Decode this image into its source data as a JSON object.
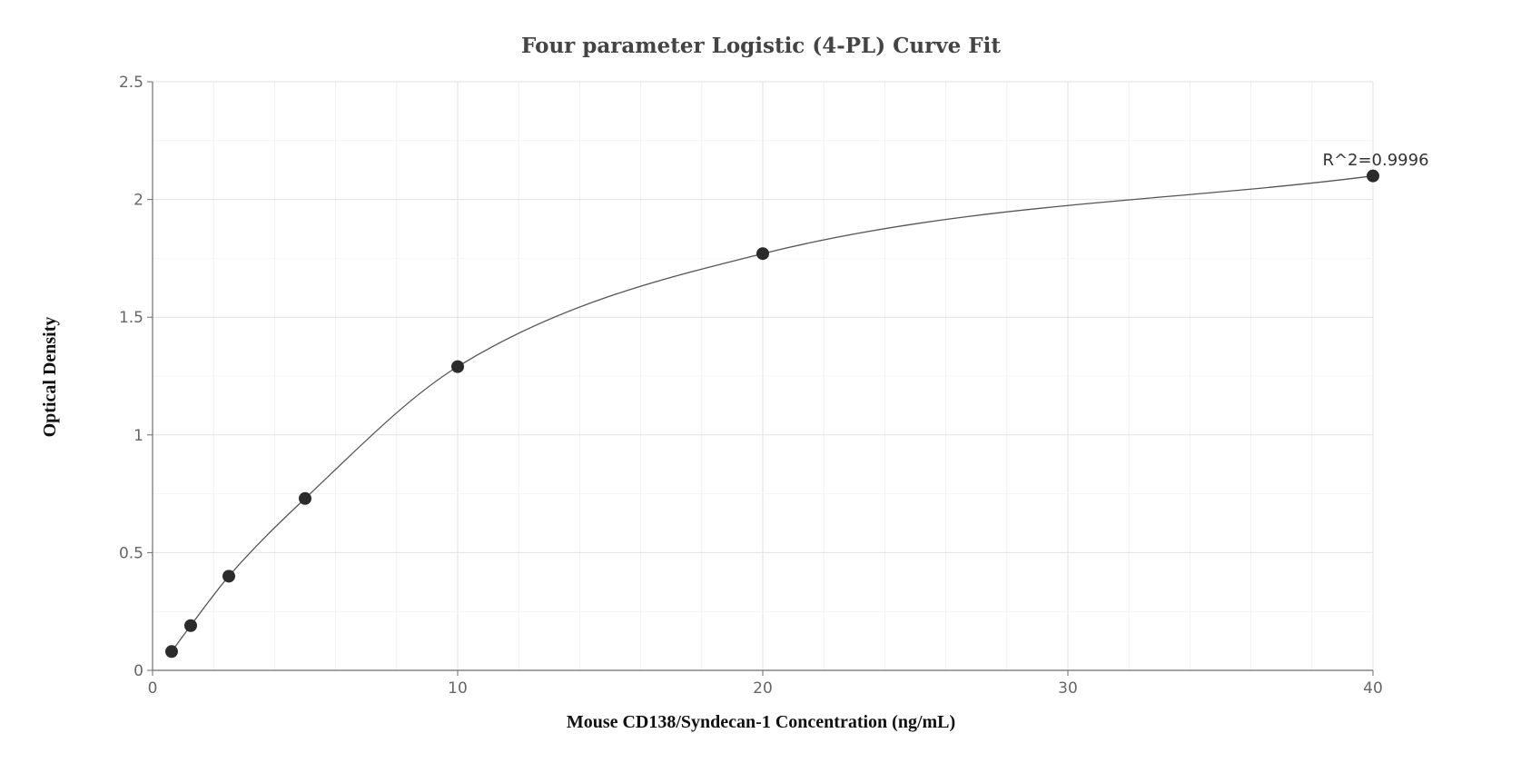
{
  "chart_data": {
    "type": "scatter",
    "title": "Four parameter Logistic (4-PL) Curve Fit",
    "xlabel": "Mouse CD138/Syndecan-1 Concentration (ng/mL)",
    "ylabel": "Optical Density",
    "xlim": [
      0,
      40
    ],
    "ylim": [
      0,
      2.5
    ],
    "x_ticks": [
      0,
      10,
      20,
      30,
      40
    ],
    "y_ticks": [
      0,
      0.5,
      1,
      1.5,
      2,
      2.5
    ],
    "x_tick_labels": [
      "0",
      "10",
      "20",
      "30",
      "40"
    ],
    "y_tick_labels": [
      "0",
      "0.5",
      "1",
      "1.5",
      "2",
      "2.5"
    ],
    "grid": true,
    "series": [
      {
        "x": [
          0.625,
          1.25,
          2.5,
          5,
          10,
          20,
          40
        ],
        "y": [
          0.08,
          0.19,
          0.4,
          0.73,
          1.29,
          1.77,
          2.1
        ],
        "marker_color": "#2b2b2b"
      }
    ],
    "fit_curve": {
      "type": "4-PL",
      "line_color": "#555555"
    },
    "annotation": {
      "text": "R^2=0.9996"
    }
  }
}
